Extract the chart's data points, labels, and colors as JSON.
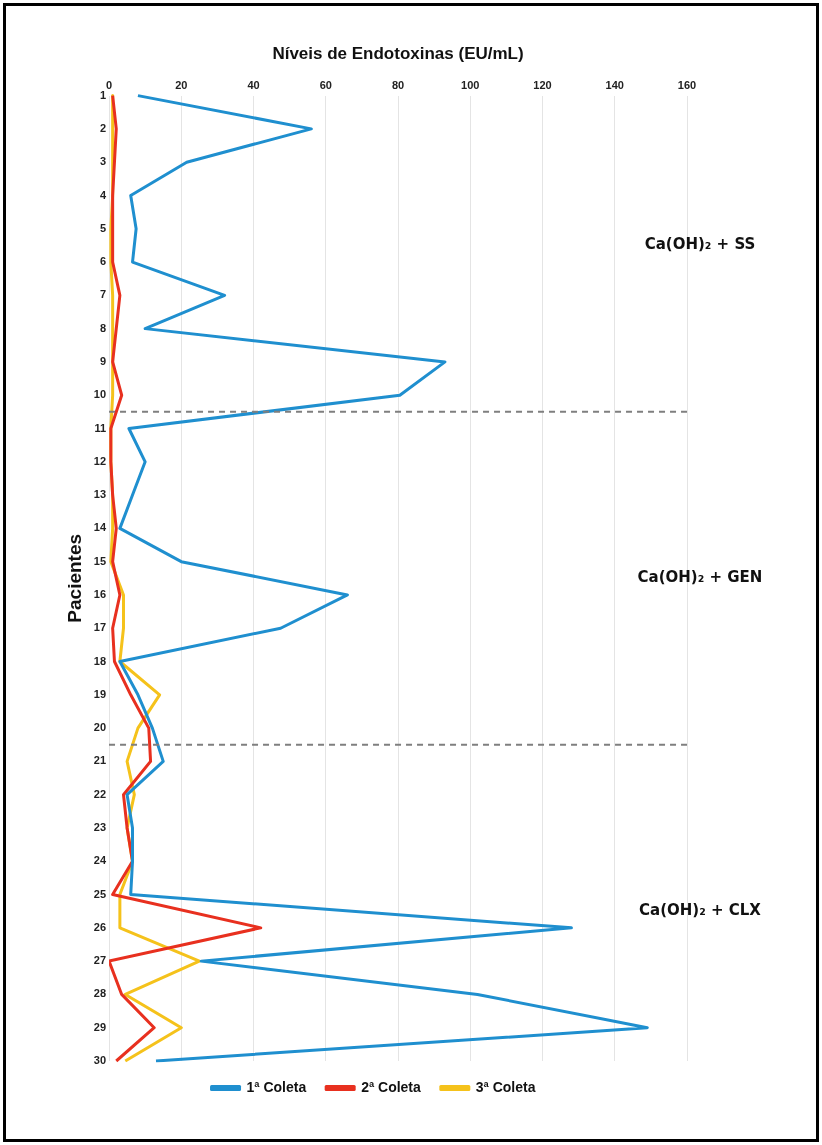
{
  "chart_data": {
    "type": "line",
    "orientation": "horizontal",
    "xlabel": "Níveis de Endotoxinas (EU/mL)",
    "ylabel": "Pacientes",
    "categories": [
      "1",
      "2",
      "3",
      "4",
      "5",
      "6",
      "7",
      "8",
      "9",
      "10",
      "11",
      "12",
      "13",
      "14",
      "15",
      "16",
      "17",
      "18",
      "19",
      "20",
      "21",
      "22",
      "23",
      "24",
      "25",
      "26",
      "27",
      "28",
      "29",
      "30"
    ],
    "series": [
      {
        "name": "1ª Coleta",
        "color": "#1f8fcf",
        "values": [
          8,
          56,
          21.5,
          6,
          7.5,
          6.5,
          32,
          10,
          93,
          80.5,
          5.5,
          10,
          6.5,
          3,
          20,
          66,
          47.5,
          3,
          8,
          12,
          15,
          5,
          6.5,
          6.5,
          6,
          128,
          25.5,
          102,
          149,
          13
        ]
      },
      {
        "name": "2ª Coleta",
        "color": "#e8301f",
        "values": [
          1,
          2,
          1.5,
          1,
          1,
          1,
          3,
          2,
          1,
          3.5,
          0.5,
          0.5,
          1,
          2,
          1,
          3,
          1,
          1.5,
          6,
          11,
          11.5,
          4,
          5,
          6.5,
          1,
          42,
          0,
          3.5,
          12.5,
          2
        ]
      },
      {
        "name": "3ª Coleta",
        "color": "#f5c21b",
        "values": [
          1,
          1,
          1,
          1,
          0.5,
          0.5,
          1,
          1,
          1,
          1,
          0.5,
          0.5,
          1,
          1,
          0.5,
          4,
          4,
          3,
          14,
          8,
          5,
          7,
          5,
          6.5,
          3,
          3,
          25,
          4.5,
          20,
          4.5
        ]
      }
    ],
    "xlim": [
      0,
      160
    ],
    "xticks": [
      0,
      20,
      40,
      60,
      80,
      100,
      120,
      140,
      160
    ],
    "grid": "x",
    "legend": "bottom",
    "marker": "none",
    "line_style": "solid",
    "annotations": [
      "Ca(OH)₂ + SS",
      "Ca(OH)₂ + GEN",
      "Ca(OH)₂ + CLX"
    ]
  }
}
